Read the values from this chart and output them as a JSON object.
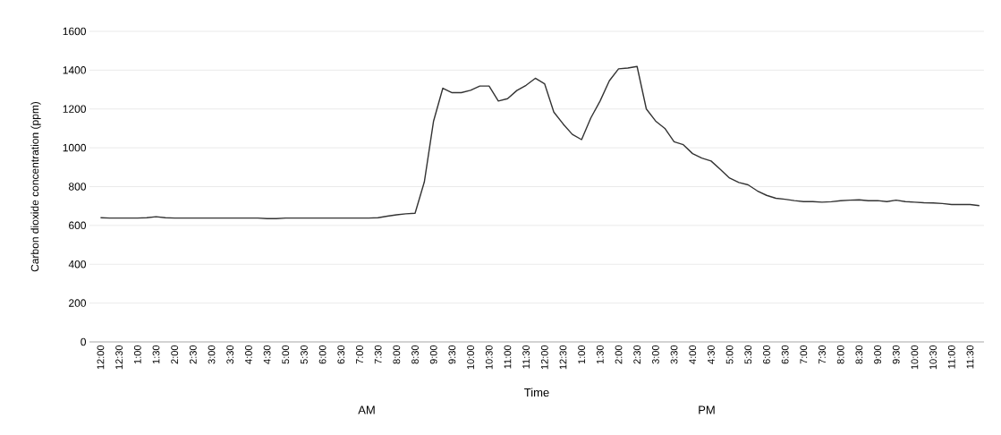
{
  "chart_data": {
    "type": "line",
    "xlabel": "Time",
    "ylabel": "Carbon dioxide concentration (ppm)",
    "annotations": [
      "AM",
      "PM"
    ],
    "categories": [
      "12:00",
      null,
      "12:30",
      null,
      "1:00",
      null,
      "1:30",
      null,
      "2:00",
      null,
      "2:30",
      null,
      "3:00",
      null,
      "3:30",
      null,
      "4:00",
      null,
      "4:30",
      null,
      "5:00",
      null,
      "5:30",
      null,
      "6:00",
      null,
      "6:30",
      null,
      "7:00",
      null,
      "7:30",
      null,
      "8:00",
      null,
      "8:30",
      null,
      "9:00",
      null,
      "9:30",
      null,
      "10:00",
      null,
      "10:30",
      null,
      "11:00",
      null,
      "11:30",
      null,
      "12:00",
      null,
      "12:30",
      null,
      "1:00",
      null,
      "1:30",
      null,
      "2:00",
      null,
      "2:30",
      null,
      "3:00",
      null,
      "3:30",
      null,
      "4:00",
      null,
      "4:30",
      null,
      "5:00",
      null,
      "5:30",
      null,
      "6:00",
      null,
      "6:30",
      null,
      "7:00",
      null,
      "7:30",
      null,
      "8:00",
      null,
      "8:30",
      null,
      "9:00",
      null,
      "9:30",
      null,
      "10:00",
      null,
      "10:30",
      null,
      "11:00",
      null,
      "11:30",
      null
    ],
    "series": [
      {
        "color": "#333333",
        "values": [
          640,
          638,
          638,
          638,
          638,
          640,
          645,
          640,
          638,
          638,
          638,
          638,
          638,
          638,
          638,
          638,
          638,
          638,
          635,
          635,
          638,
          638,
          638,
          638,
          638,
          638,
          638,
          638,
          638,
          638,
          640,
          648,
          655,
          660,
          663,
          824,
          1138,
          1307,
          1284,
          1284,
          1296,
          1318,
          1318,
          1241,
          1253,
          1295,
          1322,
          1358,
          1330,
          1184,
          1123,
          1069,
          1042,
          1154,
          1241,
          1345,
          1407,
          1411,
          1419,
          1200,
          1138,
          1100,
          1031,
          1016,
          970,
          947,
          932,
          889,
          844,
          821,
          809,
          778,
          755,
          740,
          735,
          728,
          723,
          723,
          720,
          722,
          727,
          730,
          732,
          727,
          728,
          723,
          730,
          723,
          720,
          717,
          716,
          713,
          708,
          708,
          708,
          702
        ]
      }
    ],
    "ylim": [
      0,
      1600
    ],
    "yticks": [
      0,
      200,
      400,
      600,
      800,
      1000,
      1200,
      1400,
      1600
    ],
    "grid": "y",
    "legend": false,
    "marker": "none",
    "line_style": "solid"
  }
}
